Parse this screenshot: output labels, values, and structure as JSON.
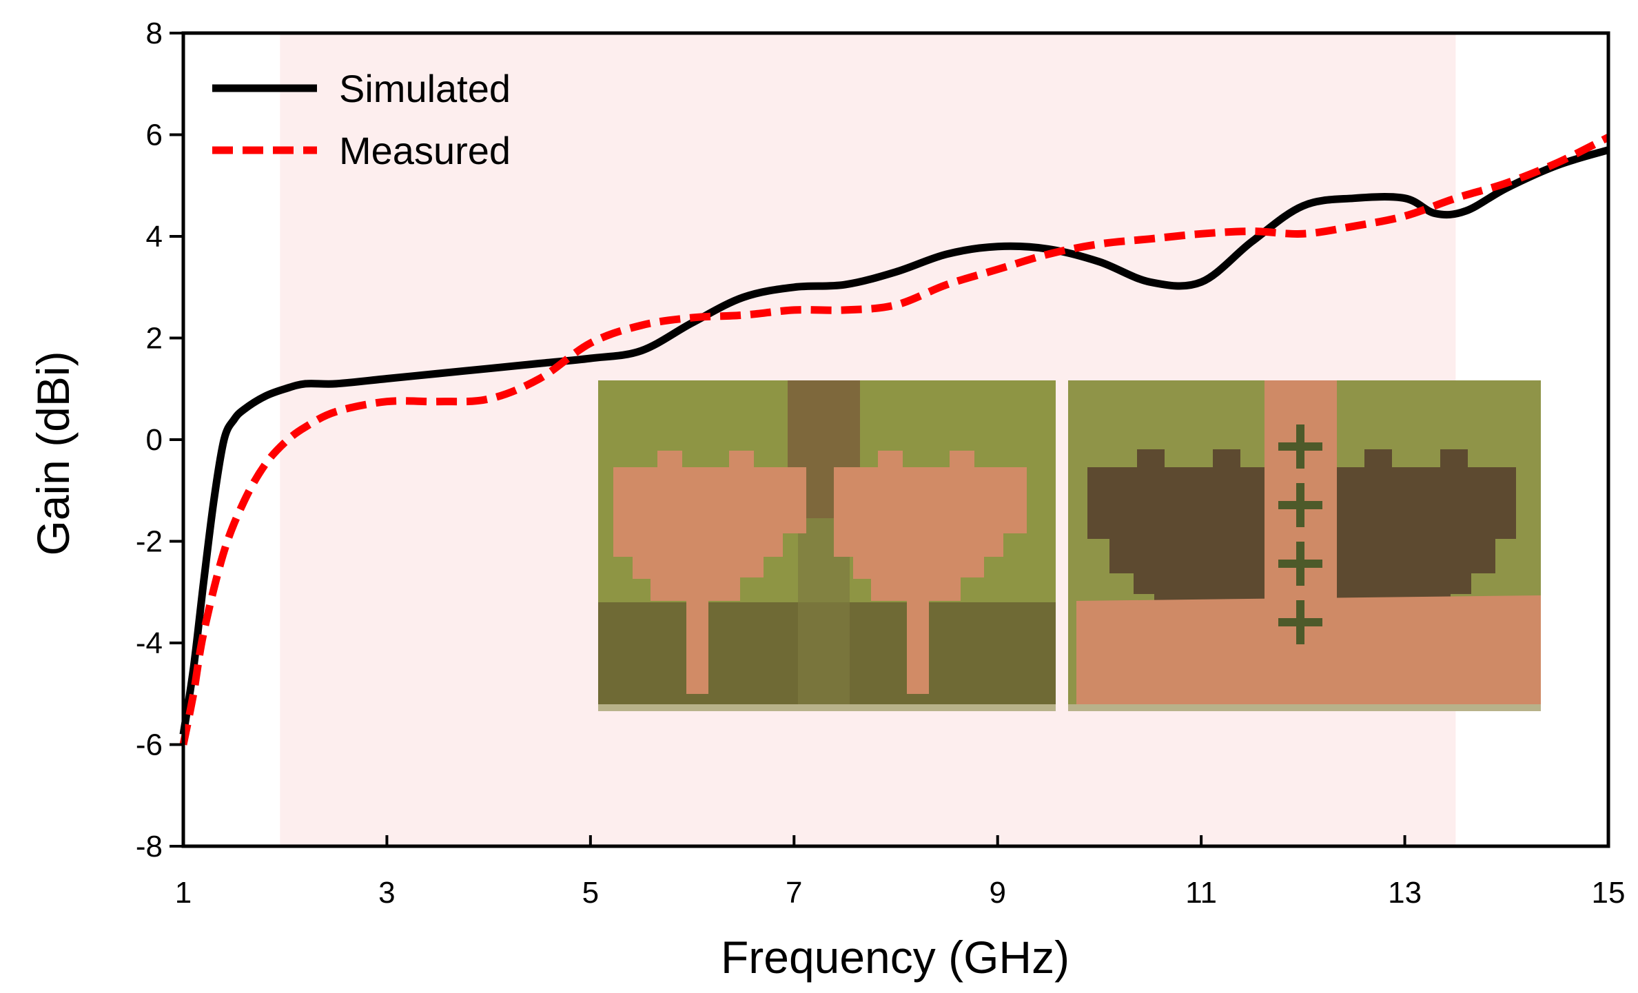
{
  "chart_data": {
    "type": "line",
    "xlabel": "Frequency (GHz)",
    "ylabel": "Gain (dBi)",
    "xlim": [
      1,
      15
    ],
    "ylim": [
      -8,
      8
    ],
    "xticks": [
      1,
      3,
      5,
      7,
      9,
      11,
      13,
      15
    ],
    "yticks": [
      -8,
      -6,
      -4,
      -2,
      0,
      2,
      4,
      6,
      8
    ],
    "legend_position": "top-left",
    "shaded_band": {
      "x_start": 1.95,
      "x_end": 13.5,
      "color": "#fdeeee"
    },
    "series": [
      {
        "name": "Simulated",
        "style": "solid",
        "color": "#000000",
        "x": [
          1,
          1.1,
          1.2,
          1.3,
          1.4,
          1.5,
          1.6,
          1.8,
          2.0,
          2.2,
          2.5,
          3,
          3.5,
          4,
          4.5,
          5,
          5.5,
          6,
          6.5,
          7,
          7.5,
          8,
          8.5,
          9,
          9.5,
          10,
          10.5,
          11,
          11.5,
          12,
          12.5,
          13,
          13.3,
          13.6,
          14,
          14.5,
          15
        ],
        "y": [
          -5.8,
          -4.5,
          -2.8,
          -1.2,
          0.0,
          0.4,
          0.6,
          0.85,
          1.0,
          1.1,
          1.1,
          1.2,
          1.3,
          1.4,
          1.5,
          1.6,
          1.75,
          2.3,
          2.8,
          3.0,
          3.05,
          3.3,
          3.65,
          3.8,
          3.75,
          3.5,
          3.1,
          3.1,
          3.9,
          4.6,
          4.75,
          4.75,
          4.45,
          4.5,
          4.95,
          5.4,
          5.7
        ]
      },
      {
        "name": "Measured",
        "style": "dashed",
        "color": "#ff0000",
        "x": [
          1,
          1.1,
          1.2,
          1.4,
          1.6,
          1.8,
          2.0,
          2.2,
          2.5,
          3,
          3.5,
          4,
          4.5,
          5,
          5.5,
          6,
          6.5,
          7,
          7.5,
          8,
          8.5,
          9,
          9.5,
          10,
          10.5,
          11,
          11.5,
          12,
          12.5,
          13,
          13.5,
          14,
          14.5,
          15
        ],
        "y": [
          -6.0,
          -5.0,
          -3.8,
          -2.2,
          -1.2,
          -0.5,
          -0.05,
          0.25,
          0.55,
          0.75,
          0.75,
          0.8,
          1.2,
          1.9,
          2.25,
          2.4,
          2.45,
          2.55,
          2.55,
          2.65,
          3.05,
          3.35,
          3.65,
          3.85,
          3.95,
          4.05,
          4.1,
          4.05,
          4.2,
          4.4,
          4.75,
          5.05,
          5.45,
          5.95
        ]
      }
    ]
  },
  "inset_photos": {
    "left_board": {
      "substrate_color": "#8f9448",
      "copper_color": "#cf8a66",
      "ground_color": "#6b6633"
    },
    "right_board": {
      "substrate_color": "#8f9448",
      "copper_color": "#cf8a66",
      "ground_color": "#5b4a30"
    }
  }
}
